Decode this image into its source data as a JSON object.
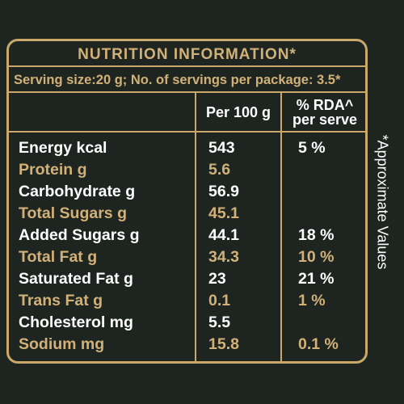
{
  "title": "NUTRITION INFORMATION*",
  "serving": "Serving size:20 g; No. of servings per package: 3.5*",
  "headers": {
    "per100": "Per 100 g",
    "rda_line1": "% RDA^",
    "rda_line2": "per serve"
  },
  "rows": [
    {
      "name": "Energy kcal",
      "per100": "543",
      "rda": "5 %"
    },
    {
      "name": "Protein g",
      "per100": "5.6",
      "rda": ""
    },
    {
      "name": "Carbohydrate g",
      "per100": "56.9",
      "rda": ""
    },
    {
      "name": "Total Sugars g",
      "per100": "45.1",
      "rda": ""
    },
    {
      "name": "Added Sugars g",
      "per100": "44.1",
      "rda": "18 %"
    },
    {
      "name": "Total Fat g",
      "per100": "34.3",
      "rda": "10 %"
    },
    {
      "name": "Saturated Fat g",
      "per100": "23",
      "rda": "21 %"
    },
    {
      "name": "Trans Fat g",
      "per100": "0.1",
      "rda": "1 %"
    },
    {
      "name": "Cholesterol mg",
      "per100": "5.5",
      "rda": ""
    },
    {
      "name": "Sodium mg",
      "per100": "15.8",
      "rda": "0.1 %"
    }
  ],
  "side_note": "*Approximate Values",
  "colors": {
    "gold": "#d2b178",
    "background": "#1e2521",
    "text": "#ffffff"
  }
}
